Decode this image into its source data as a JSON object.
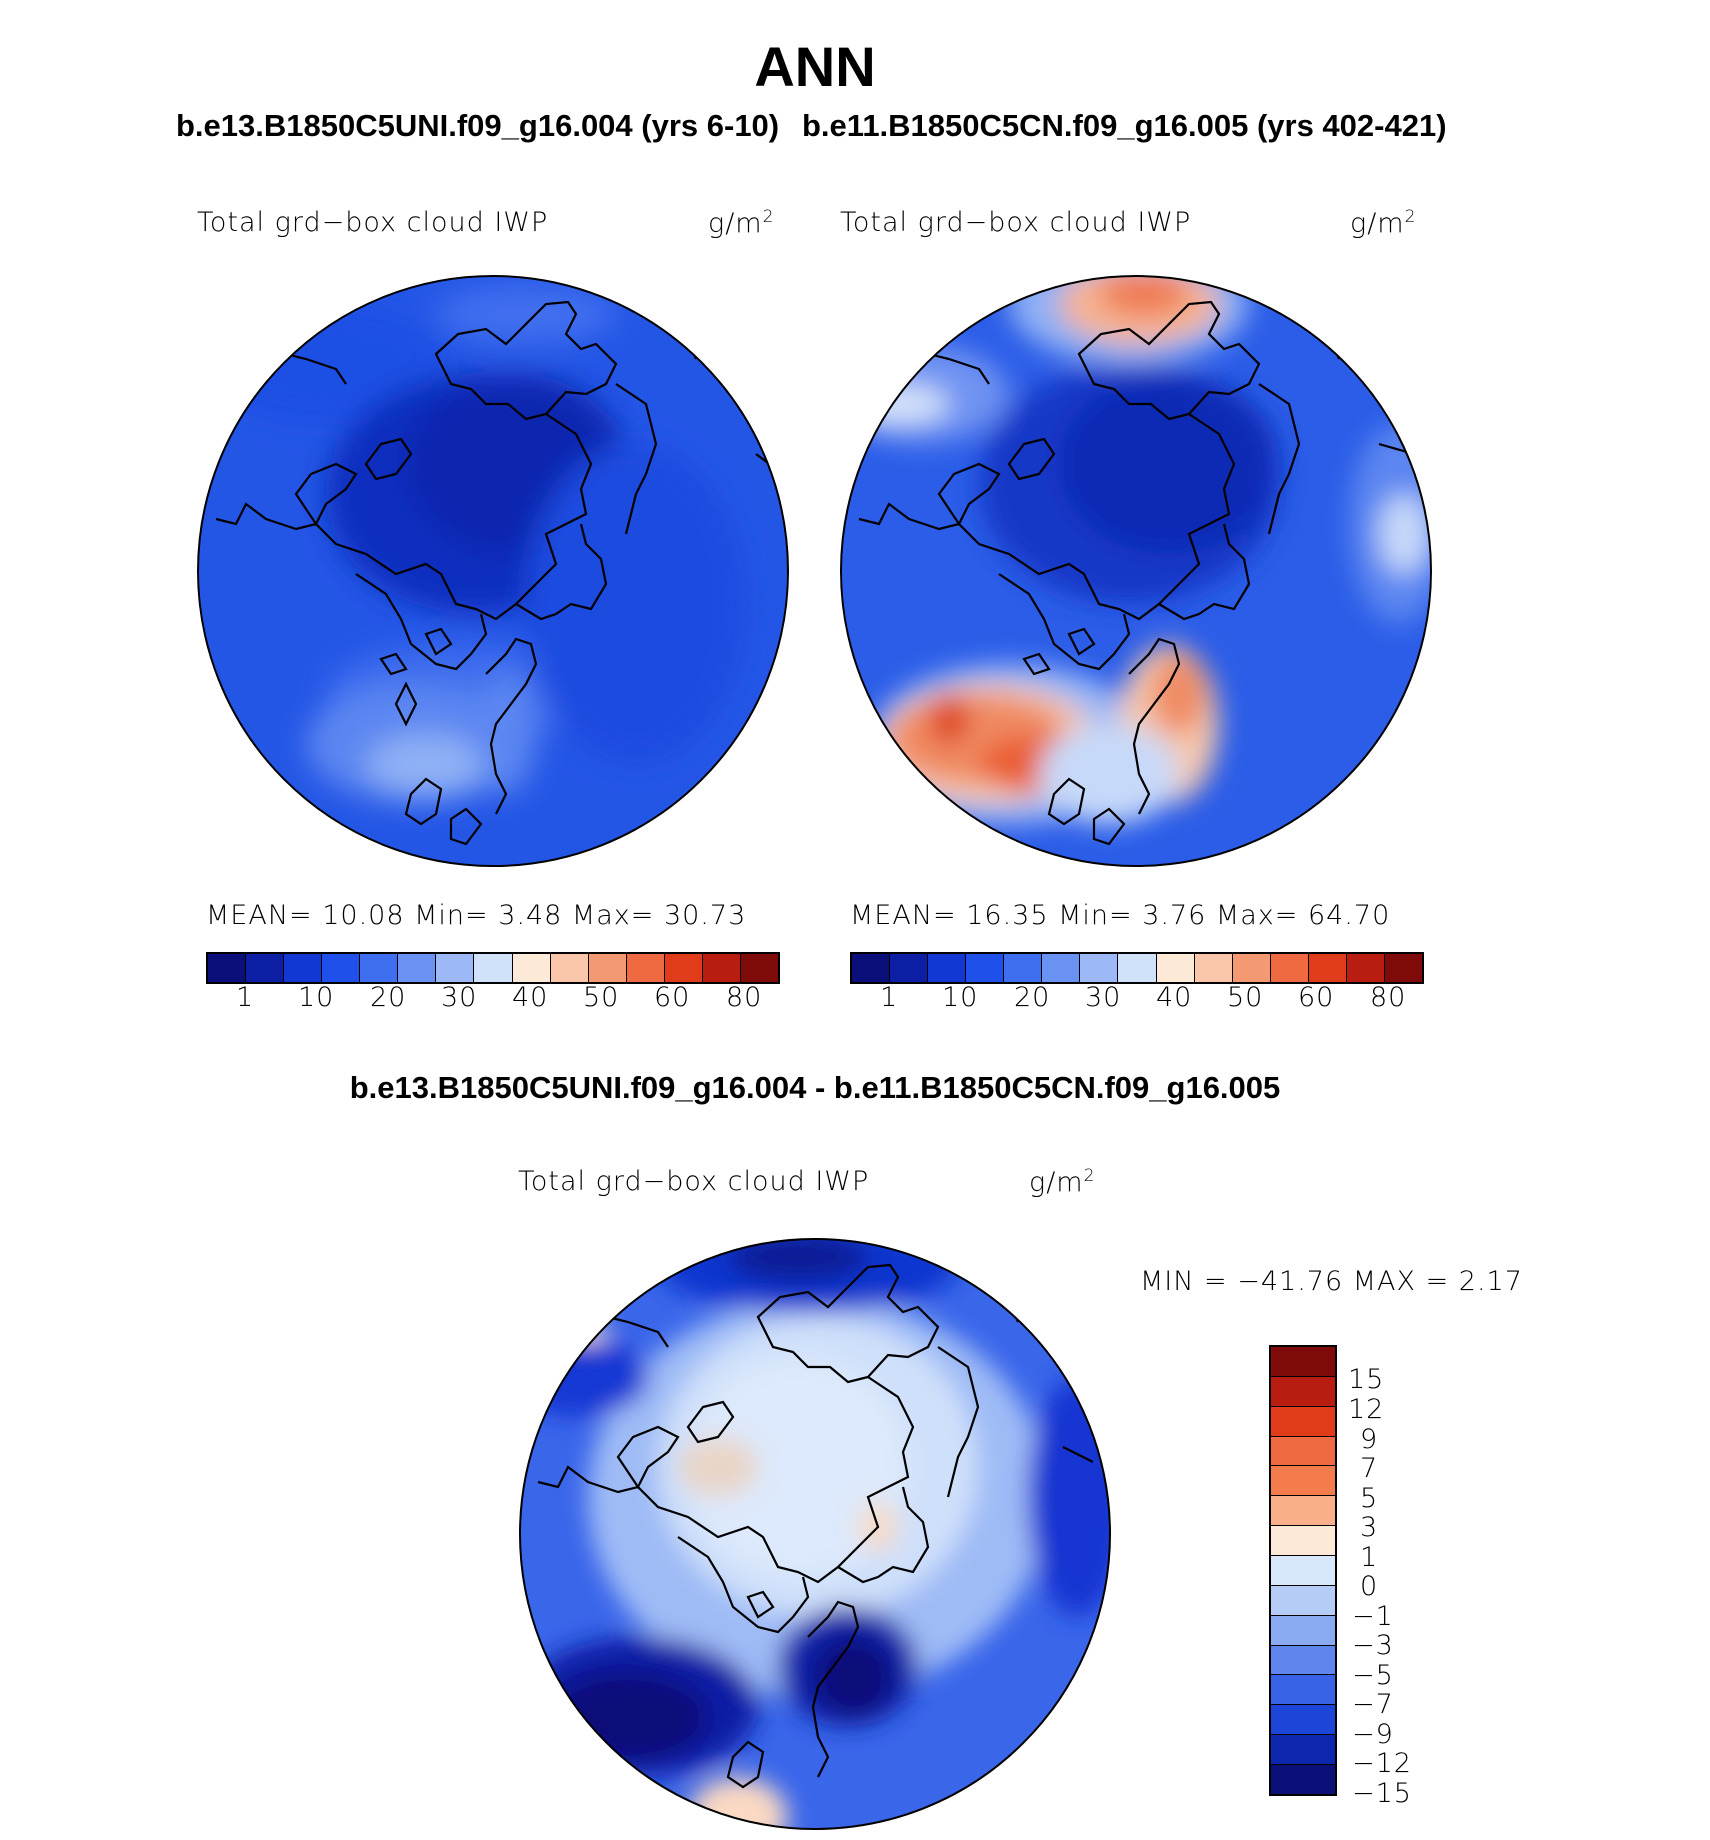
{
  "figure": {
    "title": "ANN",
    "left_case_title": "b.e13.B1850C5UNI.f09_g16.004 (yrs 6-10)",
    "right_case_title": "b.e11.B1850C5CN.f09_g16.005 (yrs 402-421)",
    "difference_title": "b.e13.B1850C5UNI.f09_g16.004 - b.e11.B1850C5CN.f09_g16.005"
  },
  "panels": [
    {
      "variable": "Total grd−box cloud IWP",
      "units": "g/m",
      "units_exp": "2",
      "stats": "MEAN=   10.08  Min=    3.48  Max=   30.73",
      "mean": 10.08,
      "min": 3.48,
      "max": 30.73
    },
    {
      "variable": "Total grd−box cloud IWP",
      "units": "g/m",
      "units_exp": "2",
      "stats": "MEAN=   16.35  Min=    3.76  Max=   64.70",
      "mean": 16.35,
      "min": 3.76,
      "max": 64.7
    }
  ],
  "colorbar_abs": {
    "colors": [
      "#0a0f7a",
      "#0c1fa4",
      "#1337d2",
      "#1f50ea",
      "#3e6fef",
      "#6a92f2",
      "#9cb8f6",
      "#d0e2fa",
      "#fde9d8",
      "#f9c6aa",
      "#f49a73",
      "#ef6a40",
      "#e13c1a",
      "#b91c10",
      "#7e0a0a"
    ],
    "tick_labels": [
      "1",
      "10",
      "20",
      "30",
      "40",
      "50",
      "60",
      "80"
    ]
  },
  "difference_panel": {
    "variable": "Total grd−box cloud IWP",
    "units": "g/m",
    "units_exp": "2",
    "minmax": "MIN = −41.76 MAX =    2.17",
    "min": -41.76,
    "max": 2.17
  },
  "colorbar_diff": {
    "colors": [
      "#7e0a0a",
      "#b91c10",
      "#e13c1a",
      "#ef6a40",
      "#f47c4c",
      "#f9b08a",
      "#fde9d8",
      "#d8e8fb",
      "#b5cdf6",
      "#8aabf1",
      "#5f86ec",
      "#3a62e6",
      "#1d45d8",
      "#0e28ad",
      "#0a1078"
    ],
    "tick_labels": [
      "15",
      "12",
      "9",
      "7",
      "5",
      "3",
      "1",
      "0",
      "−1",
      "−3",
      "−5",
      "−7",
      "−9",
      "−12",
      "−15"
    ]
  }
}
